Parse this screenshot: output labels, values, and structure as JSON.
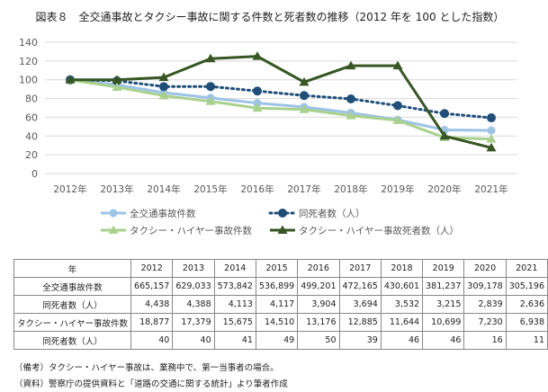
{
  "title": "図表８　全交通事故とタクシー事故に関する件数と死者数の推移（2012 年を 100 とした指数）",
  "chart_data": {
    "type": "line",
    "title": "図表８　全交通事故とタクシー事故に関する件数と死者数の推移（2012 年を 100 とした指数）",
    "categories": [
      "2012年",
      "2013年",
      "2014年",
      "2015年",
      "2016年",
      "2017年",
      "2018年",
      "2019年",
      "2020年",
      "2021年"
    ],
    "ylim": [
      0,
      140
    ],
    "yticks": [
      0,
      20,
      40,
      60,
      80,
      100,
      120,
      140
    ],
    "grid": true,
    "legend_position": "bottom",
    "series": [
      {
        "name": "全交通事故件数",
        "color": "#9dc3e6",
        "style": "solid",
        "marker": "circle",
        "values": [
          100,
          94.6,
          86.3,
          80.7,
          75.1,
          71.0,
          64.7,
          57.3,
          46.5,
          45.9
        ]
      },
      {
        "name": "同死者数（人）",
        "color": "#1f4e79",
        "style": "dotted",
        "marker": "circle",
        "values": [
          100,
          98.9,
          92.7,
          92.8,
          88.0,
          83.2,
          79.6,
          72.4,
          64.0,
          59.4
        ]
      },
      {
        "name": "タクシー・ハイヤー事故件数",
        "color": "#a9d18e",
        "style": "solid",
        "marker": "triangle",
        "values": [
          100,
          92.1,
          83.0,
          76.9,
          69.8,
          68.3,
          61.7,
          56.7,
          38.3,
          36.8
        ]
      },
      {
        "name": "タクシー・ハイヤー事故死者数（人）",
        "color": "#375623",
        "style": "solid",
        "marker": "triangle",
        "values": [
          100,
          100,
          102.5,
          122.5,
          125,
          97.5,
          115,
          115,
          40,
          27.5
        ]
      }
    ]
  },
  "table": {
    "header": [
      "年",
      "2012",
      "2013",
      "2014",
      "2015",
      "2016",
      "2017",
      "2018",
      "2019",
      "2020",
      "2021"
    ],
    "rows": [
      [
        "全交通事故件数",
        "665,157",
        "629,033",
        "573,842",
        "536,899",
        "499,201",
        "472,165",
        "430,601",
        "381,237",
        "309,178",
        "305,196"
      ],
      [
        "同死者数（人）",
        "4,438",
        "4,388",
        "4,113",
        "4,117",
        "3,904",
        "3,694",
        "3,532",
        "3,215",
        "2,839",
        "2,636"
      ],
      [
        "タクシー・ハイヤー事故件数",
        "18,877",
        "17,379",
        "15,675",
        "14,510",
        "13,176",
        "12,885",
        "11,644",
        "10,699",
        "7,230",
        "6,938"
      ],
      [
        "同死者数（人）",
        "40",
        "40",
        "41",
        "49",
        "50",
        "39",
        "46",
        "46",
        "16",
        "11"
      ]
    ]
  },
  "notes": [
    "（備考）タクシー・ハイヤー事故は、業務中で、第一当事者の場合。",
    "（資料）警察庁の提供資料と「道路の交通に関する統計」より筆者作成"
  ]
}
